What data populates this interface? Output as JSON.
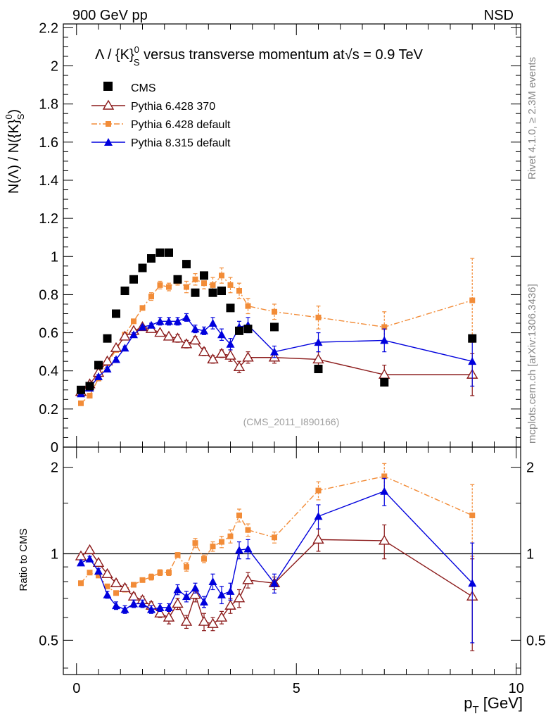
{
  "header": {
    "left": "900 GeV pp",
    "right": "NSD",
    "rivet_tag": "Rivet 4.1.0, ≥ 2.3M events",
    "source_tag": "mcplots.cern.ch [arXiv:1306.3436]",
    "analysis_tag": "(CMS_2011_I890166)"
  },
  "chart_data": [
    {
      "type": "line",
      "title": "Λ / {K}⁰ₛ versus transverse momentum at√s = 0.9 TeV",
      "title_parts": {
        "lambda": "Λ / {K}",
        "sup": "0",
        "sub": "S",
        "rest": " versus transverse momentum at",
        "sqrt": "√",
        "s_eq": "s = 0.9 TeV"
      },
      "ylabel_parts": {
        "a": "N(Λ)  /  N({K}",
        "sup": "0",
        "sub": "S",
        "b": ")"
      },
      "xlim": [
        -0.3,
        10.1
      ],
      "ylim": [
        0,
        2.22
      ],
      "yticks": [
        0,
        0.2,
        0.4,
        0.6,
        0.8,
        1,
        1.2,
        1.4,
        1.6,
        1.8,
        2,
        2.2
      ],
      "ytick_labels": [
        "0",
        "0.2",
        "0.4",
        "0.6",
        "0.8",
        "1",
        "1.2",
        "1.4",
        "1.6",
        "1.8",
        "2",
        "2.2"
      ],
      "legend": [
        "CMS",
        "Pythia 6.428 370",
        "Pythia 6.428 default",
        "Pythia 8.315 default"
      ],
      "series": [
        {
          "name": "CMS",
          "color": "#000000",
          "marker": "square",
          "x": [
            0.1,
            0.3,
            0.5,
            0.7,
            0.9,
            1.1,
            1.3,
            1.5,
            1.7,
            1.9,
            2.1,
            2.3,
            2.5,
            2.7,
            2.9,
            3.1,
            3.3,
            3.5,
            3.7,
            3.9,
            4.5,
            5.5,
            7.0,
            9.0
          ],
          "y": [
            0.3,
            0.32,
            0.43,
            0.57,
            0.7,
            0.82,
            0.88,
            0.94,
            0.99,
            1.02,
            1.02,
            0.88,
            0.96,
            0.81,
            0.9,
            0.81,
            0.82,
            0.73,
            0.61,
            0.62,
            0.63,
            0.41,
            0.34,
            0.57
          ],
          "err": [
            0,
            0,
            0,
            0,
            0,
            0,
            0,
            0,
            0,
            0,
            0,
            0,
            0,
            0,
            0,
            0,
            0,
            0,
            0,
            0,
            0,
            0,
            0,
            0
          ]
        },
        {
          "name": "Pythia 6.428 370",
          "color": "#8b1a1a",
          "marker": "triangle-open",
          "dash": "",
          "x": [
            0.1,
            0.3,
            0.5,
            0.7,
            0.9,
            1.1,
            1.3,
            1.5,
            1.7,
            1.9,
            2.1,
            2.3,
            2.5,
            2.7,
            2.9,
            3.1,
            3.3,
            3.5,
            3.7,
            3.9,
            4.5,
            5.5,
            7.0,
            9.0
          ],
          "y": [
            0.29,
            0.33,
            0.39,
            0.45,
            0.52,
            0.58,
            0.61,
            0.63,
            0.62,
            0.6,
            0.58,
            0.57,
            0.54,
            0.56,
            0.5,
            0.46,
            0.49,
            0.48,
            0.42,
            0.47,
            0.47,
            0.46,
            0.38,
            0.38
          ],
          "err": [
            0.01,
            0.01,
            0.01,
            0.01,
            0.01,
            0.01,
            0.01,
            0.01,
            0.01,
            0.01,
            0.01,
            0.02,
            0.02,
            0.02,
            0.02,
            0.02,
            0.02,
            0.03,
            0.03,
            0.03,
            0.03,
            0.04,
            0.05,
            0.11
          ]
        },
        {
          "name": "Pythia 6.428 default",
          "color": "#f28c38",
          "marker": "square-small",
          "dash": "8,3,2,3",
          "x": [
            0.1,
            0.3,
            0.5,
            0.7,
            0.9,
            1.1,
            1.3,
            1.5,
            1.7,
            1.9,
            2.1,
            2.3,
            2.5,
            2.7,
            2.9,
            3.1,
            3.3,
            3.5,
            3.7,
            3.9,
            4.5,
            5.5,
            7.0,
            9.0
          ],
          "y": [
            0.23,
            0.27,
            0.36,
            0.44,
            0.51,
            0.59,
            0.66,
            0.73,
            0.79,
            0.85,
            0.84,
            0.87,
            0.84,
            0.88,
            0.86,
            0.85,
            0.9,
            0.85,
            0.82,
            0.74,
            0.71,
            0.68,
            0.63,
            0.77
          ],
          "err": [
            0.01,
            0.01,
            0.01,
            0.01,
            0.01,
            0.01,
            0.01,
            0.01,
            0.02,
            0.02,
            0.02,
            0.02,
            0.03,
            0.03,
            0.03,
            0.04,
            0.04,
            0.04,
            0.04,
            0.04,
            0.04,
            0.06,
            0.08,
            0.22
          ]
        },
        {
          "name": "Pythia 8.315 default",
          "color": "#0000dd",
          "marker": "triangle",
          "dash": "",
          "x": [
            0.1,
            0.3,
            0.5,
            0.7,
            0.9,
            1.1,
            1.3,
            1.5,
            1.7,
            1.9,
            2.1,
            2.3,
            2.5,
            2.7,
            2.9,
            3.1,
            3.3,
            3.5,
            3.7,
            3.9,
            4.5,
            5.5,
            7.0,
            9.0
          ],
          "y": [
            0.28,
            0.31,
            0.37,
            0.41,
            0.46,
            0.52,
            0.59,
            0.63,
            0.64,
            0.66,
            0.66,
            0.66,
            0.68,
            0.62,
            0.61,
            0.65,
            0.59,
            0.54,
            0.63,
            0.64,
            0.5,
            0.55,
            0.56,
            0.45
          ],
          "err": [
            0.01,
            0.01,
            0.01,
            0.01,
            0.01,
            0.01,
            0.01,
            0.01,
            0.01,
            0.02,
            0.02,
            0.02,
            0.02,
            0.02,
            0.02,
            0.03,
            0.03,
            0.03,
            0.03,
            0.04,
            0.03,
            0.05,
            0.06,
            0.13
          ]
        }
      ]
    },
    {
      "type": "line",
      "title": "",
      "ylabel": "Ratio to CMS",
      "xlabel": "p",
      "xlabel_sub": "T",
      "xlabel_rest": " [GeV]",
      "xlim": [
        -0.3,
        10.1
      ],
      "ylim": [
        0.38,
        2.35
      ],
      "yscale": "log",
      "xticks": [
        0,
        5,
        10
      ],
      "xtick_labels": [
        "0",
        "5",
        "10"
      ],
      "yticks": [
        0.5,
        1,
        2
      ],
      "ytick_labels": [
        "0.5",
        "1",
        "2"
      ],
      "reference_line": 1,
      "series": [
        {
          "name": "Pythia 6.428 370",
          "color": "#8b1a1a",
          "marker": "triangle-open",
          "dash": "",
          "x": [
            0.1,
            0.3,
            0.5,
            0.7,
            0.9,
            1.1,
            1.3,
            1.5,
            1.7,
            1.9,
            2.1,
            2.3,
            2.5,
            2.7,
            2.9,
            3.1,
            3.3,
            3.5,
            3.7,
            3.9,
            4.5,
            5.5,
            7.0,
            9.0
          ],
          "y": [
            0.98,
            1.03,
            0.93,
            0.85,
            0.79,
            0.76,
            0.71,
            0.69,
            0.66,
            0.62,
            0.6,
            0.67,
            0.58,
            0.72,
            0.58,
            0.57,
            0.6,
            0.66,
            0.7,
            0.81,
            0.79,
            1.12,
            1.11,
            0.71
          ],
          "err": [
            0.02,
            0.02,
            0.02,
            0.02,
            0.02,
            0.02,
            0.02,
            0.02,
            0.02,
            0.02,
            0.03,
            0.03,
            0.03,
            0.04,
            0.04,
            0.03,
            0.03,
            0.04,
            0.05,
            0.05,
            0.04,
            0.1,
            0.15,
            0.25
          ]
        },
        {
          "name": "Pythia 6.428 default",
          "color": "#f28c38",
          "marker": "square-small",
          "dash": "8,3,2,3",
          "x": [
            0.1,
            0.3,
            0.5,
            0.7,
            0.9,
            1.1,
            1.3,
            1.5,
            1.7,
            1.9,
            2.1,
            2.3,
            2.5,
            2.7,
            2.9,
            3.1,
            3.3,
            3.5,
            3.7,
            3.9,
            4.5,
            5.5,
            7.0,
            9.0
          ],
          "y": [
            0.79,
            0.86,
            0.84,
            0.77,
            0.73,
            0.75,
            0.78,
            0.81,
            0.83,
            0.86,
            0.86,
            0.99,
            0.9,
            1.09,
            0.96,
            1.06,
            1.1,
            1.15,
            1.36,
            1.21,
            1.14,
            1.66,
            1.86,
            1.36
          ],
          "err": [
            0.01,
            0.01,
            0.01,
            0.01,
            0.01,
            0.01,
            0.01,
            0.01,
            0.02,
            0.02,
            0.02,
            0.02,
            0.03,
            0.04,
            0.03,
            0.04,
            0.05,
            0.06,
            0.07,
            0.06,
            0.05,
            0.12,
            0.2,
            0.38
          ]
        },
        {
          "name": "Pythia 8.315 default",
          "color": "#0000dd",
          "marker": "triangle",
          "dash": "",
          "x": [
            0.1,
            0.3,
            0.5,
            0.7,
            0.9,
            1.1,
            1.3,
            1.5,
            1.7,
            1.9,
            2.1,
            2.3,
            2.5,
            2.7,
            2.9,
            3.1,
            3.3,
            3.5,
            3.7,
            3.9,
            4.5,
            5.5,
            7.0,
            9.0
          ],
          "y": [
            0.93,
            0.96,
            0.87,
            0.72,
            0.66,
            0.64,
            0.67,
            0.67,
            0.64,
            0.65,
            0.65,
            0.75,
            0.71,
            0.76,
            0.68,
            0.8,
            0.72,
            0.74,
            1.03,
            1.04,
            0.79,
            1.35,
            1.65,
            0.79
          ],
          "err": [
            0.02,
            0.02,
            0.02,
            0.02,
            0.02,
            0.02,
            0.02,
            0.02,
            0.02,
            0.02,
            0.02,
            0.03,
            0.03,
            0.03,
            0.03,
            0.05,
            0.05,
            0.05,
            0.07,
            0.08,
            0.06,
            0.13,
            0.18,
            0.3
          ]
        }
      ]
    }
  ]
}
